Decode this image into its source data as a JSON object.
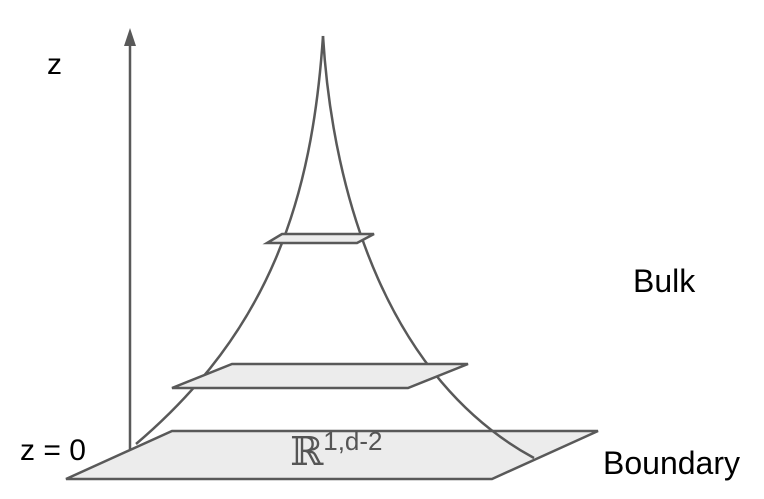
{
  "labels": {
    "z_axis": "z",
    "z_zero": "z = 0",
    "bulk": "Bulk",
    "boundary": "Boundary",
    "space_symbol": "ℝ",
    "space_exponent": "1,d-2"
  },
  "colors": {
    "stroke": "#595959",
    "plane_fill": "#ececec",
    "text": "#000000"
  }
}
